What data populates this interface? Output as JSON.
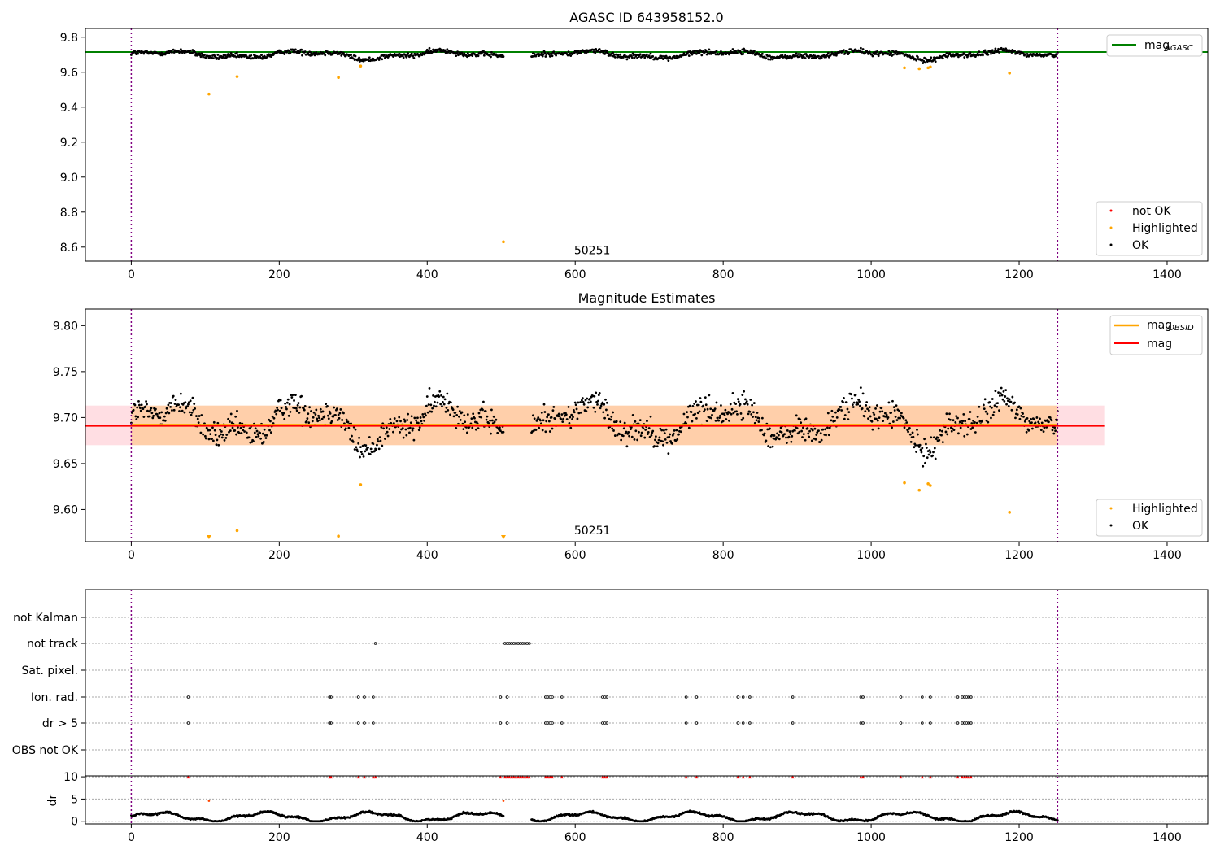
{
  "chart_data": [
    {
      "type": "scatter",
      "title": "AGASC ID 643958152.0",
      "xlim": [
        -62,
        1455
      ],
      "ylim": [
        8.52,
        9.85
      ],
      "xticks": [
        "0",
        "200",
        "400",
        "600",
        "800",
        "1000",
        "1200",
        "1400"
      ],
      "yticks": [
        "8.6",
        "8.8",
        "9.0",
        "9.2",
        "9.4",
        "9.6",
        "9.8"
      ],
      "vlines": [
        0,
        1252
      ],
      "obsid_label": {
        "text": "50251",
        "x": 623,
        "y": 8.56
      },
      "hline": {
        "name": "mag_AGASC",
        "y": 9.715,
        "color": "#008000"
      },
      "legend_top": [
        {
          "label": "mag",
          "sub": "AGASC",
          "color": "#008000"
        }
      ],
      "legend_bottom": [
        {
          "label": "not OK",
          "color": "#ff0000"
        },
        {
          "label": "Highlighted",
          "color": "#ffa500"
        },
        {
          "label": "OK",
          "color": "#000000"
        }
      ],
      "series": [
        {
          "name": "OK",
          "color": "#000000",
          "note": "~1250 points between x=0 and x=1252, y mostly 9.63 to 9.74 with a gap near x=505-540"
        },
        {
          "name": "Highlighted",
          "color": "#ffa500",
          "points": [
            [
              105,
              9.475
            ],
            [
              143,
              9.575
            ],
            [
              280,
              9.57
            ],
            [
              310,
              9.635
            ],
            [
              503,
              8.63
            ],
            [
              1045,
              9.625
            ],
            [
              1065,
              9.62
            ],
            [
              1077,
              9.625
            ],
            [
              1080,
              9.63
            ],
            [
              1187,
              9.595
            ]
          ]
        }
      ]
    },
    {
      "type": "scatter",
      "title": "Magnitude Estimates",
      "xlim": [
        -62,
        1455
      ],
      "ylim": [
        9.565,
        9.818
      ],
      "xticks": [
        "0",
        "200",
        "400",
        "600",
        "800",
        "1000",
        "1200",
        "1400"
      ],
      "yticks": [
        "9.60",
        "9.65",
        "9.70",
        "9.75",
        "9.80"
      ],
      "vlines": [
        0,
        1252
      ],
      "obsid_label": {
        "text": "50251",
        "x": 623,
        "y": 9.573
      },
      "mag_obsid": {
        "y": 9.692,
        "band": [
          9.67,
          9.713
        ],
        "x_range": [
          0,
          1252
        ],
        "color": "#ffa500"
      },
      "mag": {
        "y": 9.691,
        "band": [
          9.67,
          9.713
        ],
        "color": "#ff0000"
      },
      "legend_top": [
        {
          "label": "mag",
          "sub": "OBSID",
          "color": "#ffa500"
        },
        {
          "label": "mag",
          "sub": "",
          "color": "#ff0000"
        }
      ],
      "legend_bottom": [
        {
          "label": "Highlighted",
          "color": "#ffa500"
        },
        {
          "label": "OK",
          "color": "#000000"
        }
      ],
      "series": [
        {
          "name": "OK",
          "color": "#000000",
          "note": "~1250 points, y mostly 9.635 to 9.75"
        },
        {
          "name": "Highlighted",
          "color": "#ffa500",
          "points": [
            [
              143,
              9.577
            ],
            [
              280,
              9.571
            ],
            [
              310,
              9.627
            ],
            [
              1045,
              9.629
            ],
            [
              1065,
              9.621
            ],
            [
              1077,
              9.628
            ],
            [
              1080,
              9.626
            ],
            [
              1187,
              9.597
            ]
          ],
          "offscale_markers_x": [
            105,
            503
          ]
        }
      ]
    },
    {
      "type": "scatter",
      "title": "",
      "xlim": [
        -62,
        1455
      ],
      "xticks": [
        "0",
        "200",
        "400",
        "600",
        "800",
        "1000",
        "1200",
        "1400"
      ],
      "vlines": [
        0,
        1252
      ],
      "flag_rows": [
        "not Kalman",
        "not track",
        "Sat. pixel.",
        "Ion. rad.",
        "dr > 5",
        "OBS not OK"
      ],
      "flags": {
        "not track": [
          330,
          505,
          508,
          511,
          514,
          517,
          520,
          523,
          526,
          529,
          532,
          535,
          538
        ],
        "Ion. rad.": [
          77,
          268,
          270,
          307,
          315,
          327,
          499,
          508,
          560,
          563,
          566,
          569,
          582,
          637,
          640,
          643,
          750,
          764,
          820,
          827,
          836,
          894,
          986,
          989,
          1040,
          1069,
          1080,
          1117,
          1123,
          1126,
          1129,
          1132,
          1135
        ],
        "dr > 5": [
          77,
          268,
          270,
          307,
          315,
          327,
          499,
          508,
          560,
          563,
          566,
          569,
          582,
          637,
          640,
          643,
          750,
          764,
          820,
          827,
          836,
          894,
          986,
          989,
          1040,
          1069,
          1080,
          1117,
          1123,
          1126,
          1129,
          1132,
          1135
        ]
      },
      "dr_ylabel": "dr",
      "dr_yticks": [
        "0",
        "5",
        "10"
      ],
      "dr_ylim": [
        -0.6,
        10.2
      ],
      "dr_series": {
        "color": "#000000",
        "note": "dr values mostly 0 to 2.5 across x=0 to 1252"
      },
      "dr_high_points": {
        "color": "#ff0000",
        "x": [
          77,
          268,
          270,
          307,
          315,
          327,
          330,
          499,
          505,
          508,
          511,
          514,
          517,
          520,
          523,
          526,
          529,
          532,
          535,
          538,
          560,
          563,
          566,
          569,
          582,
          637,
          640,
          643,
          750,
          764,
          820,
          827,
          836,
          894,
          986,
          989,
          1040,
          1069,
          1080,
          1117,
          1123,
          1126,
          1129,
          1132,
          1135
        ],
        "y": 10
      },
      "dr_mid_points": [
        [
          105,
          4.6
        ],
        [
          503,
          4.6
        ]
      ]
    }
  ]
}
